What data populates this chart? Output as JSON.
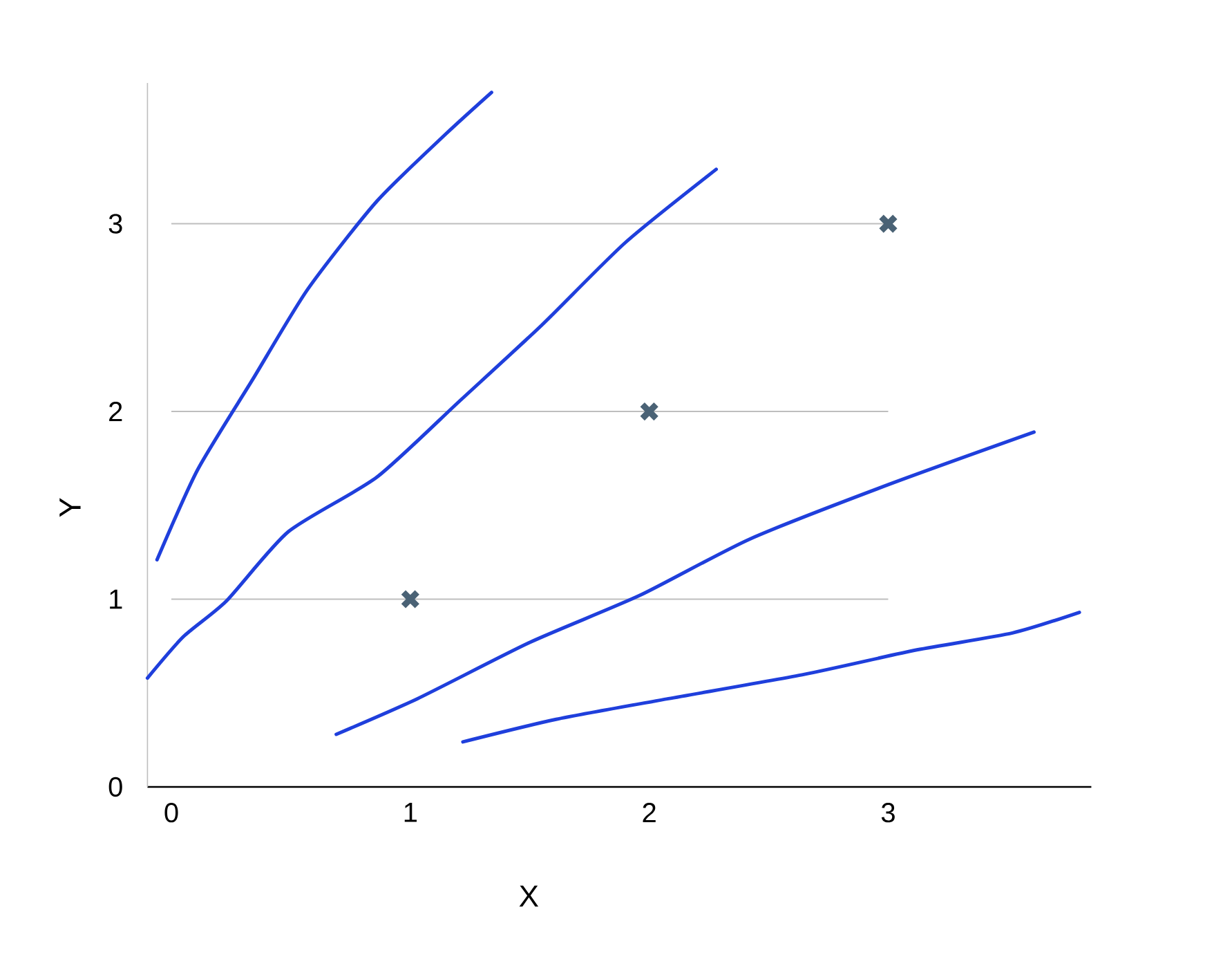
{
  "chart_data": {
    "type": "scatter",
    "xlabel": "X",
    "ylabel": "Y",
    "xlim": [
      -0.1,
      3.85
    ],
    "ylim": [
      0,
      3.75
    ],
    "xticks": [
      0,
      1,
      2,
      3
    ],
    "yticks": [
      0,
      1,
      2,
      3
    ],
    "grid": "y",
    "marker": "cross",
    "line_style": "solid",
    "series": [
      {
        "color": "#4a6275",
        "x": [
          1,
          2,
          3
        ],
        "values": [
          1,
          2,
          3
        ]
      },
      {
        "type": "line",
        "marker": "none",
        "color": "#1f3fdc",
        "x": [
          -0.06,
          0.11,
          0.34,
          0.57,
          0.86,
          1.15,
          1.34
        ],
        "values": [
          1.21,
          1.69,
          2.17,
          2.65,
          3.12,
          3.48,
          3.7
        ]
      },
      {
        "type": "line",
        "marker": "none",
        "color": "#1f3fdc",
        "x": [
          -0.1,
          0.05,
          0.23,
          0.49,
          0.86,
          1.21,
          1.55,
          1.9,
          2.28
        ],
        "values": [
          0.58,
          0.8,
          0.99,
          1.36,
          1.65,
          2.06,
          2.46,
          2.9,
          3.29
        ]
      },
      {
        "type": "line",
        "marker": "none",
        "color": "#1f3fdc",
        "x": [
          0.69,
          1.03,
          1.5,
          1.96,
          2.42,
          3.0,
          3.61
        ],
        "values": [
          0.28,
          0.47,
          0.77,
          1.02,
          1.32,
          1.61,
          1.89
        ]
      },
      {
        "type": "line",
        "marker": "none",
        "color": "#1f3fdc",
        "x": [
          1.22,
          1.61,
          2.08,
          2.65,
          3.12,
          3.52,
          3.8
        ],
        "values": [
          0.24,
          0.36,
          0.47,
          0.6,
          0.73,
          0.82,
          0.93
        ]
      }
    ]
  }
}
